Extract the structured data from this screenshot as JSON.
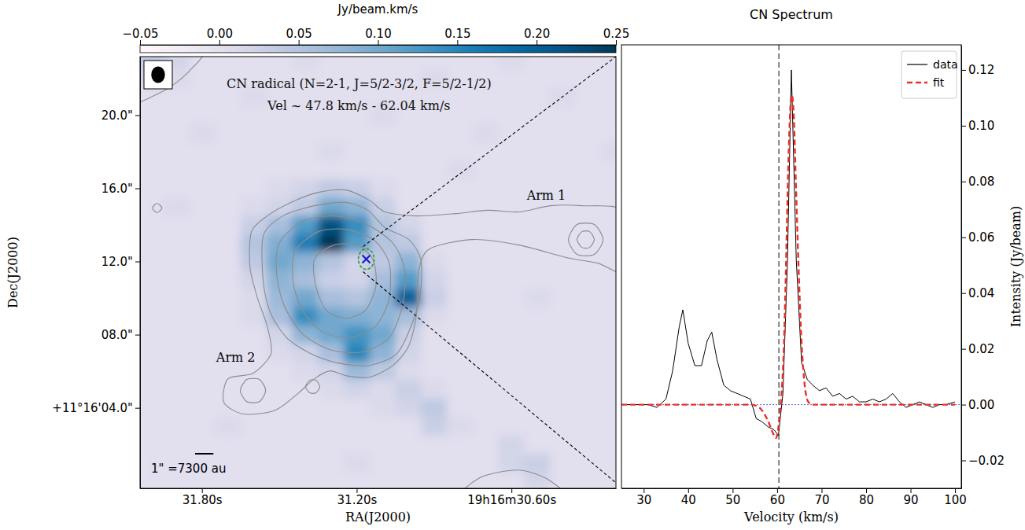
{
  "chart_data": [
    {
      "type": "heatmap",
      "title": "CN radical (N=2-1, J=5/2-3/2, F=5/2-1/2)",
      "subtitle": "Vel ~ 47.8 km/s - 62.04 km/s",
      "x_label": "RA(J2000)",
      "y_label": "Dec(J2000)",
      "xlim": [
        32.04,
        30.195
      ],
      "xticks": [
        {
          "value": 31.8,
          "label": "31.80s"
        },
        {
          "value": 31.2,
          "label": "31.20s"
        },
        {
          "value": 30.6,
          "label": "19h16m30.60s"
        }
      ],
      "ylim": [
        -0.4,
        23.2
      ],
      "yticks": [
        {
          "value": 20,
          "label": "20.0\""
        },
        {
          "value": 16,
          "label": "16.0\""
        },
        {
          "value": 12,
          "label": "12.0\""
        },
        {
          "value": 8,
          "label": "08.0\""
        },
        {
          "value": 4,
          "label": "+11°16'04.0\""
        }
      ],
      "x": [
        32.0,
        31.9,
        31.8,
        31.7,
        31.6,
        31.5,
        31.4,
        31.3,
        31.2,
        31.1,
        31.0,
        30.9,
        30.8,
        30.7,
        30.6,
        30.5,
        30.4,
        30.3,
        30.2
      ],
      "y": [
        23,
        22,
        21,
        20,
        19,
        18,
        17,
        16,
        15,
        14,
        13,
        12,
        11,
        10,
        9,
        8,
        7,
        6,
        5,
        4,
        3,
        2,
        1,
        0
      ],
      "values": [
        [
          0.04,
          0.02,
          0,
          0,
          0,
          0,
          0.01,
          0,
          0,
          0,
          0,
          0,
          0,
          0,
          0.01,
          0,
          0,
          0,
          0
        ],
        [
          0.02,
          0.01,
          0,
          0,
          0,
          0,
          0,
          0,
          0,
          0,
          0,
          0.01,
          0,
          0,
          0,
          0,
          0,
          0,
          0
        ],
        [
          0,
          0,
          0,
          0,
          0.01,
          0,
          0,
          0,
          0,
          0,
          0,
          0,
          0,
          0,
          0,
          0,
          0.01,
          0,
          0
        ],
        [
          0,
          0,
          0,
          0,
          0,
          0,
          0,
          0,
          0,
          0.01,
          0,
          0,
          0,
          0,
          0,
          0,
          0,
          0,
          0
        ],
        [
          0,
          0,
          0.01,
          0,
          0,
          0,
          0,
          0,
          0,
          0,
          0,
          0,
          0,
          0.01,
          0,
          0,
          0,
          0,
          0
        ],
        [
          0,
          0,
          0,
          0,
          0,
          0,
          0,
          0.01,
          0,
          0,
          0,
          0,
          0,
          0,
          0,
          0,
          0,
          0,
          0.01
        ],
        [
          0,
          0,
          0,
          0,
          0,
          0,
          0,
          0,
          0,
          0,
          0,
          0,
          0.01,
          0,
          0,
          0,
          0,
          0,
          0
        ],
        [
          0,
          0,
          0,
          0,
          0,
          0.01,
          0.02,
          0.04,
          0.03,
          0.01,
          0,
          0,
          0,
          0,
          0,
          0,
          0,
          0,
          0
        ],
        [
          0,
          0.01,
          0,
          0,
          0.01,
          0.02,
          0.04,
          0.1,
          0.08,
          0.03,
          0,
          0,
          0,
          0,
          0,
          0,
          0,
          0,
          0
        ],
        [
          0,
          0,
          0,
          0,
          0.03,
          0.06,
          0.12,
          0.22,
          0.14,
          0.05,
          0.02,
          0,
          0,
          0,
          0,
          0,
          0,
          0,
          0
        ],
        [
          0,
          0,
          0,
          0,
          0.05,
          0.09,
          0.16,
          0.25,
          0.12,
          0.05,
          0.04,
          0,
          0,
          0,
          0,
          0,
          0,
          0,
          0
        ],
        [
          0,
          0,
          0,
          0,
          0.04,
          0.1,
          0.08,
          0.05,
          0.02,
          0.04,
          0.08,
          0.01,
          0,
          0,
          0,
          0,
          0,
          0,
          0
        ],
        [
          0,
          0,
          0,
          0,
          0.02,
          0.08,
          0.06,
          0.03,
          0.02,
          0.06,
          0.12,
          0.02,
          0,
          0,
          0,
          0,
          0,
          0,
          0
        ],
        [
          0,
          0,
          0,
          0,
          0.01,
          0.07,
          0.1,
          0.06,
          0.05,
          0.08,
          0.2,
          0.03,
          0,
          0,
          0,
          0.01,
          0,
          0,
          0
        ],
        [
          0,
          0,
          0,
          0,
          0.01,
          0.06,
          0.14,
          0.1,
          0.09,
          0.08,
          0.06,
          0.01,
          0,
          0,
          0,
          0,
          0,
          0,
          0
        ],
        [
          0,
          0,
          0,
          0,
          0,
          0.02,
          0.08,
          0.1,
          0.13,
          0.1,
          0.03,
          0,
          0,
          0,
          0,
          0,
          0,
          0,
          0
        ],
        [
          0,
          0,
          0,
          0,
          0,
          0.01,
          0.02,
          0.06,
          0.15,
          0.08,
          0.02,
          0,
          0,
          0,
          0,
          0,
          0,
          0,
          0
        ],
        [
          0,
          0,
          0,
          0,
          0,
          0,
          0.01,
          0.02,
          0.07,
          0.04,
          0.01,
          0,
          0,
          0,
          0,
          0,
          0,
          0,
          0
        ],
        [
          0,
          0,
          0,
          0,
          0,
          0,
          0,
          0.01,
          0.02,
          0.01,
          0.03,
          0.01,
          0,
          0,
          0,
          0,
          0,
          0,
          0
        ],
        [
          0,
          0,
          0,
          0,
          0,
          0,
          0,
          0,
          0,
          0.01,
          0.02,
          0.04,
          0,
          0,
          0,
          0,
          0,
          0,
          0
        ],
        [
          0,
          0,
          0,
          0.01,
          0,
          0,
          0,
          0,
          0,
          0,
          0,
          0.03,
          0.01,
          0,
          0,
          0,
          0,
          0,
          0
        ],
        [
          0,
          0,
          0,
          0,
          0,
          0,
          0,
          0,
          0,
          0,
          0,
          0,
          0,
          0,
          0.02,
          0,
          0,
          0,
          0
        ],
        [
          0,
          0,
          0,
          0,
          0,
          0,
          0,
          0,
          0.01,
          0,
          0,
          0,
          0,
          0,
          0.02,
          0.03,
          0,
          0,
          0
        ],
        [
          0,
          0,
          0,
          0,
          0,
          0,
          0,
          0,
          0,
          0,
          0,
          0,
          0,
          0,
          0,
          0.02,
          0,
          0,
          0
        ]
      ],
      "colorbar": {
        "label": "Jy/beam.km/s",
        "range": [
          -0.05,
          0.25
        ],
        "ticks": [
          {
            "value": -0.05,
            "label": "−0.05"
          },
          {
            "value": 0,
            "label": "0.00"
          },
          {
            "value": 0.05,
            "label": "0.05"
          },
          {
            "value": 0.1,
            "label": "0.10"
          },
          {
            "value": 0.15,
            "label": "0.15"
          },
          {
            "value": 0.2,
            "label": "0.20"
          },
          {
            "value": 0.25,
            "label": "0.25"
          }
        ]
      },
      "contours": [
        {
          "ra": [
            31.608,
            31.547,
            31.455,
            31.349,
            31.242,
            31.151,
            31.09,
            30.968,
            30.815,
            30.693,
            30.571,
            30.449,
            30.327,
            30.16,
            30.16,
            30.266,
            30.388,
            30.571,
            30.754,
            30.922,
            30.962,
            30.968,
            30.998,
            31.059,
            31.151,
            31.242,
            31.303,
            31.364,
            31.425,
            31.516,
            31.638,
            31.715,
            31.699,
            31.602,
            31.532,
            31.547,
            31.584,
            31.614
          ],
          "dec": [
            13.63,
            14.49,
            15.23,
            15.78,
            15.91,
            15.35,
            14.71,
            14.49,
            14.62,
            14.8,
            14.71,
            15.05,
            15.05,
            14.71,
            11.48,
            11.91,
            12.22,
            12.9,
            13.2,
            12.65,
            11.27,
            9.12,
            7.4,
            6.32,
            5.68,
            5.76,
            6.02,
            5.59,
            4.82,
            3.87,
            3.66,
            4.3,
            5.59,
            5.89,
            6.97,
            8.47,
            9.98,
            11.7
          ]
        },
        {
          "ra": [
            31.562,
            31.486,
            31.364,
            31.242,
            31.157,
            31.09,
            30.998,
            30.952,
            30.952,
            30.983,
            31.044,
            31.151,
            31.273,
            31.379,
            31.471,
            31.532,
            31.562
          ],
          "dec": [
            13.42,
            14.49,
            15.05,
            15.23,
            14.8,
            13.85,
            13.2,
            12.13,
            10.41,
            8.69,
            6.97,
            6.32,
            6.45,
            6.97,
            7.83,
            9.12,
            10.84
          ]
        },
        {
          "ra": [
            31.501,
            31.41,
            31.288,
            31.166,
            31.059,
            31.013,
            31.023,
            31.074,
            31.181,
            31.303,
            31.41,
            31.48,
            31.51
          ],
          "dec": [
            12.99,
            14.19,
            14.49,
            14.06,
            12.99,
            11.48,
            9.55,
            7.83,
            7.05,
            7.18,
            8.04,
            9.55,
            11.27
          ]
        },
        {
          "ra": [
            31.44,
            31.349,
            31.242,
            31.135,
            31.074,
            31.074,
            31.126,
            31.227,
            31.334,
            31.41,
            31.446
          ],
          "dec": [
            12.56,
            13.63,
            13.76,
            13.2,
            11.91,
            9.98,
            8.47,
            7.83,
            8.17,
            9.33,
            10.84
          ]
        },
        {
          "ra": [
            31.364,
            31.288,
            31.196,
            31.135,
            31.126,
            31.166,
            31.242,
            31.318,
            31.358
          ],
          "dec": [
            12.13,
            12.9,
            12.9,
            12.04,
            10.62,
            9.33,
            8.9,
            9.33,
            10.62
          ]
        },
        {
          "ra": [
            30.245,
            30.279,
            30.346,
            30.379,
            30.346,
            30.279
          ],
          "dec": [
            13.2,
            14.02,
            14.02,
            13.2,
            12.39,
            12.39
          ]
        },
        {
          "ra": [
            30.279,
            30.297,
            30.327,
            30.346,
            30.327,
            30.297
          ],
          "dec": [
            13.2,
            13.63,
            13.63,
            13.2,
            12.77,
            12.77
          ]
        },
        {
          "ra": [
            31.553,
            31.577,
            31.626,
            31.651,
            31.626,
            31.577
          ],
          "dec": [
            4.95,
            5.55,
            5.55,
            4.95,
            4.34,
            4.34
          ]
        },
        {
          "ra": [
            31.343,
            31.358,
            31.382,
            31.398,
            31.382,
            31.358
          ],
          "dec": [
            5.16,
            5.51,
            5.51,
            5.16,
            4.82,
            4.82
          ]
        },
        {
          "ra": [
            32.126,
            31.959,
            31.852,
            31.797,
            32.126
          ],
          "dec": [
            20.52,
            21.25,
            22.37,
            23.74,
            23.74
          ]
        },
        {
          "ra": [
            31.955,
            31.974,
            31.992,
            31.974
          ],
          "dec": [
            14.92,
            15.18,
            14.92,
            14.67
          ]
        },
        {
          "ra": [
            30.8,
            30.724,
            30.571,
            30.449,
            30.388
          ],
          "dec": [
            -1.2,
            0.17,
            0.6,
            0.0,
            -1.2
          ]
        }
      ],
      "annotations": [
        {
          "text": "Arm 1",
          "x": 30.465,
          "y": 15.6
        },
        {
          "text": "Arm 2",
          "x": 31.669,
          "y": 6.75
        }
      ],
      "source": {
        "ra": 31.163,
        "dec": 12.13
      },
      "beam": {
        "major": 0.9,
        "minor": 0.75
      },
      "scale_bar": {
        "length": 1,
        "label": "1\" =7300 au"
      }
    },
    {
      "type": "line",
      "title": "CN Spectrum",
      "x_label": "Velocity (km/s)",
      "y_label": "Intensity (Jy/beam)",
      "xlim": [
        25,
        101.4
      ],
      "xticks": [
        30,
        40,
        50,
        60,
        70,
        80,
        90,
        100
      ],
      "ylim": [
        -0.03,
        0.129
      ],
      "yticks": [
        {
          "value": -0.02,
          "label": "−0.02"
        },
        {
          "value": 0,
          "label": "0.00"
        },
        {
          "value": 0.02,
          "label": "0.02"
        },
        {
          "value": 0.04,
          "label": "0.04"
        },
        {
          "value": 0.06,
          "label": "0.06"
        },
        {
          "value": 0.08,
          "label": "0.08"
        },
        {
          "value": 0.1,
          "label": "0.10"
        },
        {
          "value": 0.12,
          "label": "0.12"
        }
      ],
      "legend": "upper right",
      "vline": 60.4,
      "hline": 0,
      "series": [
        {
          "name": "data",
          "color": "#000000",
          "line_style": "solid",
          "x": [
            25,
            27,
            29,
            31,
            33,
            35,
            36.5,
            38,
            38.8,
            40,
            41.5,
            43,
            44.3,
            45.3,
            46.5,
            48,
            49.5,
            51,
            52.5,
            54,
            55.3,
            56.5,
            58,
            59.3,
            60.3,
            61.3,
            62.3,
            63.2,
            64.3,
            65.5,
            66.8,
            68,
            69.5,
            71,
            72.5,
            74,
            75.5,
            77,
            78.5,
            80,
            81.5,
            83,
            84.5,
            86,
            87.5,
            89,
            90.5,
            92,
            93.5,
            95,
            96.5,
            98,
            100
          ],
          "values": [
            0,
            0,
            0,
            0,
            -0.001,
            0.002,
            0.012,
            0.028,
            0.034,
            0.022,
            0.014,
            0.014,
            0.023,
            0.026,
            0.016,
            0.007,
            0.005,
            0.004,
            0.003,
            0.002,
            -0.005,
            -0.006,
            -0.008,
            -0.009,
            -0.011,
            0.004,
            0.05,
            0.12,
            0.052,
            0.015,
            0.009,
            0.007,
            0.005,
            0.006,
            0.003,
            0.004,
            0.002,
            0.003,
            0.001,
            0.001,
            0.002,
            0.001,
            0.002,
            0.004,
            0.001,
            -0.001,
            0.0,
            0.001,
            0.0,
            -0.001,
            0.0,
            0.0,
            0.001
          ]
        },
        {
          "name": "fit",
          "color": "#e8302a",
          "line_style": "dashed",
          "x": [
            25,
            50,
            54,
            56,
            57,
            58,
            59,
            59.7,
            60.3,
            60.8,
            61.5,
            62,
            62.5,
            63,
            63.3,
            63.7,
            64.2,
            64.8,
            65.5,
            66.2,
            67,
            68,
            75,
            100
          ],
          "values": [
            0,
            0,
            0,
            -0.001,
            -0.003,
            -0.006,
            -0.01,
            -0.012,
            -0.008,
            0,
            0.02,
            0.05,
            0.085,
            0.107,
            0.111,
            0.105,
            0.08,
            0.05,
            0.022,
            0.007,
            0.001,
            0,
            0,
            0
          ]
        }
      ]
    }
  ]
}
